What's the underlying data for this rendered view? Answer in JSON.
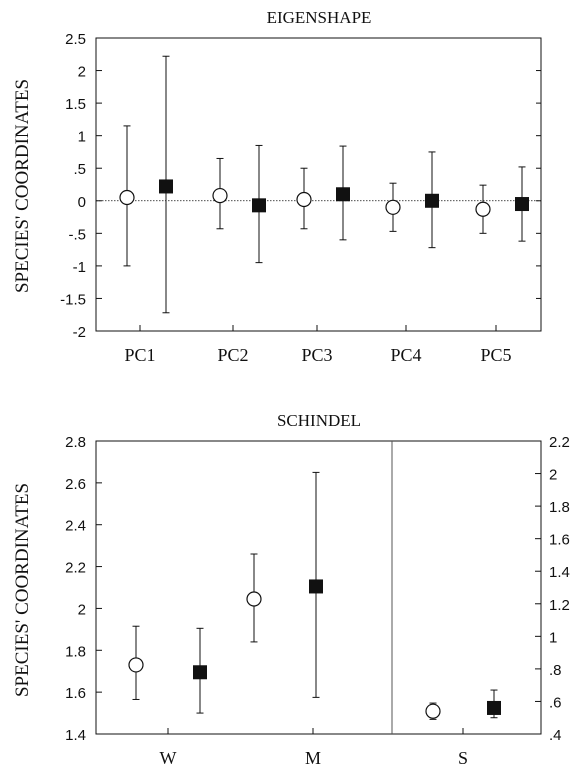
{
  "chart_data": [
    {
      "type": "scatter",
      "title": "EIGENSHAPE",
      "ylabel": "SPECIES' COORDINATES",
      "xlabel": "",
      "categories": [
        "PC1",
        "PC2",
        "PC3",
        "PC4",
        "PC5"
      ],
      "ylim": [
        -2,
        2.5
      ],
      "yticks": [
        {
          "v": 2.5,
          "label": "2.5"
        },
        {
          "v": 2,
          "label": "2"
        },
        {
          "v": 1.5,
          "label": "1.5"
        },
        {
          "v": 1,
          "label": "1"
        },
        {
          "v": 0.5,
          "label": ".5"
        },
        {
          "v": 0,
          "label": "0"
        },
        {
          "v": -0.5,
          "label": "-.5"
        },
        {
          "v": -1,
          "label": "-1"
        },
        {
          "v": -1.5,
          "label": "-1.5"
        },
        {
          "v": -2,
          "label": "-2"
        }
      ],
      "zero_line": true,
      "series": [
        {
          "marker": "open-circle",
          "points": [
            {
              "cat": "PC1",
              "y": 0.05,
              "low": -1.0,
              "high": 1.15
            },
            {
              "cat": "PC2",
              "y": 0.08,
              "low": -0.43,
              "high": 0.65
            },
            {
              "cat": "PC3",
              "y": 0.02,
              "low": -0.43,
              "high": 0.5
            },
            {
              "cat": "PC4",
              "y": -0.1,
              "low": -0.47,
              "high": 0.27
            },
            {
              "cat": "PC5",
              "y": -0.13,
              "low": -0.5,
              "high": 0.24
            }
          ]
        },
        {
          "marker": "filled-square",
          "points": [
            {
              "cat": "PC1",
              "y": 0.22,
              "low": -1.72,
              "high": 2.22
            },
            {
              "cat": "PC2",
              "y": -0.07,
              "low": -0.95,
              "high": 0.85
            },
            {
              "cat": "PC3",
              "y": 0.1,
              "low": -0.6,
              "high": 0.84
            },
            {
              "cat": "PC4",
              "y": 0.0,
              "low": -0.72,
              "high": 0.75
            },
            {
              "cat": "PC5",
              "y": -0.05,
              "low": -0.62,
              "high": 0.52
            }
          ]
        }
      ]
    },
    {
      "type": "scatter",
      "title": "SCHINDEL",
      "ylabel": "SPECIES' COORDINATES",
      "xlabel": "",
      "categories": [
        "W",
        "M",
        "S"
      ],
      "ylim": [
        1.4,
        2.8
      ],
      "yticks": [
        {
          "v": 2.8,
          "label": "2.8"
        },
        {
          "v": 2.6,
          "label": "2.6"
        },
        {
          "v": 2.4,
          "label": "2.4"
        },
        {
          "v": 2.2,
          "label": "2.2"
        },
        {
          "v": 2.0,
          "label": "2"
        },
        {
          "v": 1.8,
          "label": "1.8"
        },
        {
          "v": 1.6,
          "label": "1.6"
        },
        {
          "v": 1.4,
          "label": "1.4"
        }
      ],
      "y2lim": [
        0.4,
        2.2
      ],
      "y2ticks": [
        {
          "v": 2.2,
          "label": "2.2"
        },
        {
          "v": 2.0,
          "label": "2"
        },
        {
          "v": 1.8,
          "label": "1.8"
        },
        {
          "v": 1.6,
          "label": "1.6"
        },
        {
          "v": 1.4,
          "label": "1.4"
        },
        {
          "v": 1.2,
          "label": "1.2"
        },
        {
          "v": 1.0,
          "label": "1"
        },
        {
          "v": 0.8,
          "label": ".8"
        },
        {
          "v": 0.6,
          "label": ".6"
        },
        {
          "v": 0.4,
          "label": ".4"
        }
      ],
      "note": "W and M read on the left axis; S reads on the right axis",
      "series": [
        {
          "marker": "open-circle",
          "points": [
            {
              "cat": "W",
              "y": 1.73,
              "low": 1.565,
              "high": 1.915,
              "axis": "left"
            },
            {
              "cat": "M",
              "y": 2.045,
              "low": 1.84,
              "high": 2.26,
              "axis": "left"
            },
            {
              "cat": "S",
              "y": 0.54,
              "low": 0.49,
              "high": 0.59,
              "axis": "right"
            }
          ]
        },
        {
          "marker": "filled-square",
          "points": [
            {
              "cat": "W",
              "y": 1.695,
              "low": 1.5,
              "high": 1.905,
              "axis": "left"
            },
            {
              "cat": "M",
              "y": 2.105,
              "low": 1.575,
              "high": 2.65,
              "axis": "left"
            },
            {
              "cat": "S",
              "y": 0.56,
              "low": 0.5,
              "high": 0.67,
              "axis": "right"
            }
          ]
        }
      ]
    }
  ]
}
